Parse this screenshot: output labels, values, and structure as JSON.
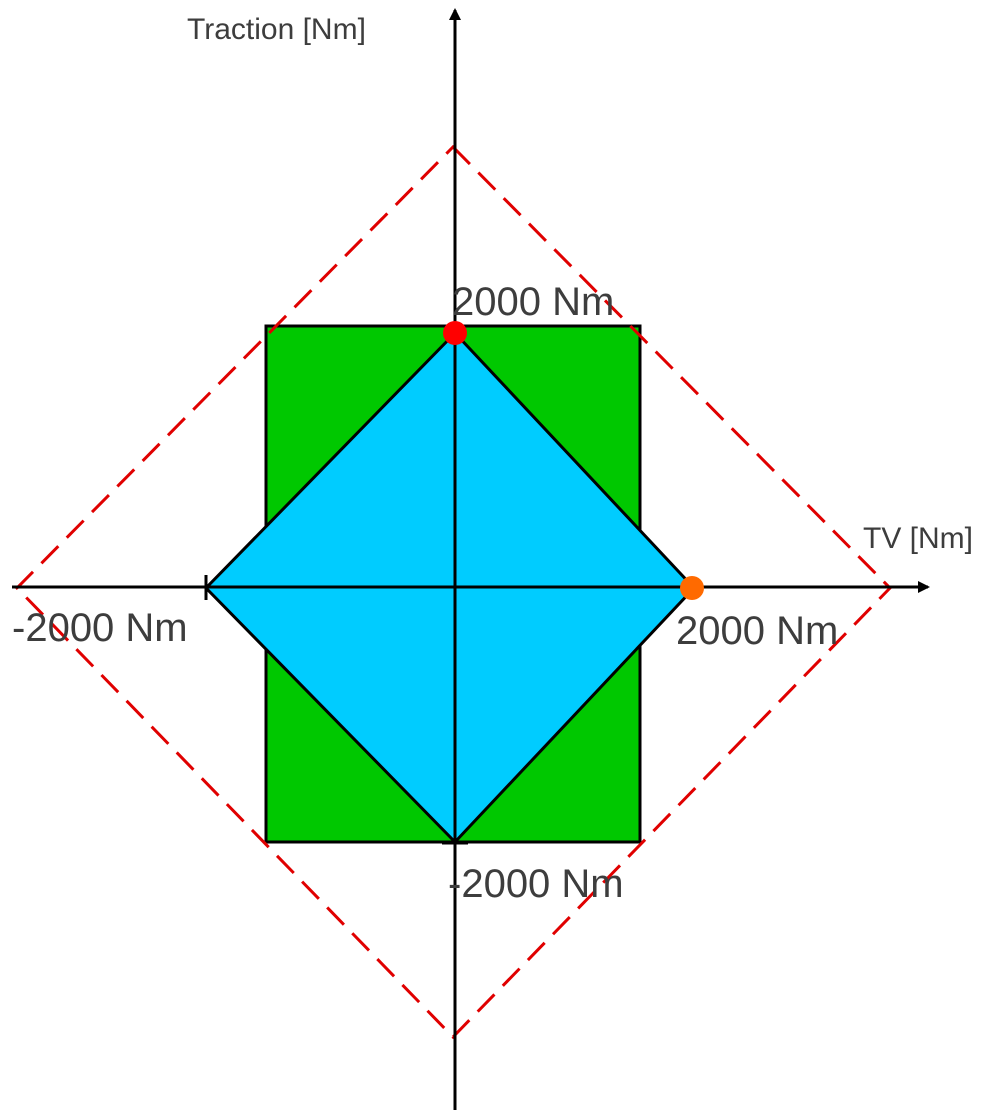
{
  "axes": {
    "y_label": "Traction [Nm]",
    "x_label": "TV [Nm]"
  },
  "tick_labels": {
    "top": "2000 Nm",
    "left": "-2000 Nm",
    "right": "2000 Nm",
    "bottom": "-2000 Nm"
  },
  "colors": {
    "rectangle_fill": "#00c800",
    "inner_diamond_fill": "#00ccff",
    "outer_diamond_stroke": "#e00000",
    "top_point": "#ff0000",
    "right_point": "#ff6a00",
    "axes": "#000000",
    "text": "#3d3d3d"
  }
}
